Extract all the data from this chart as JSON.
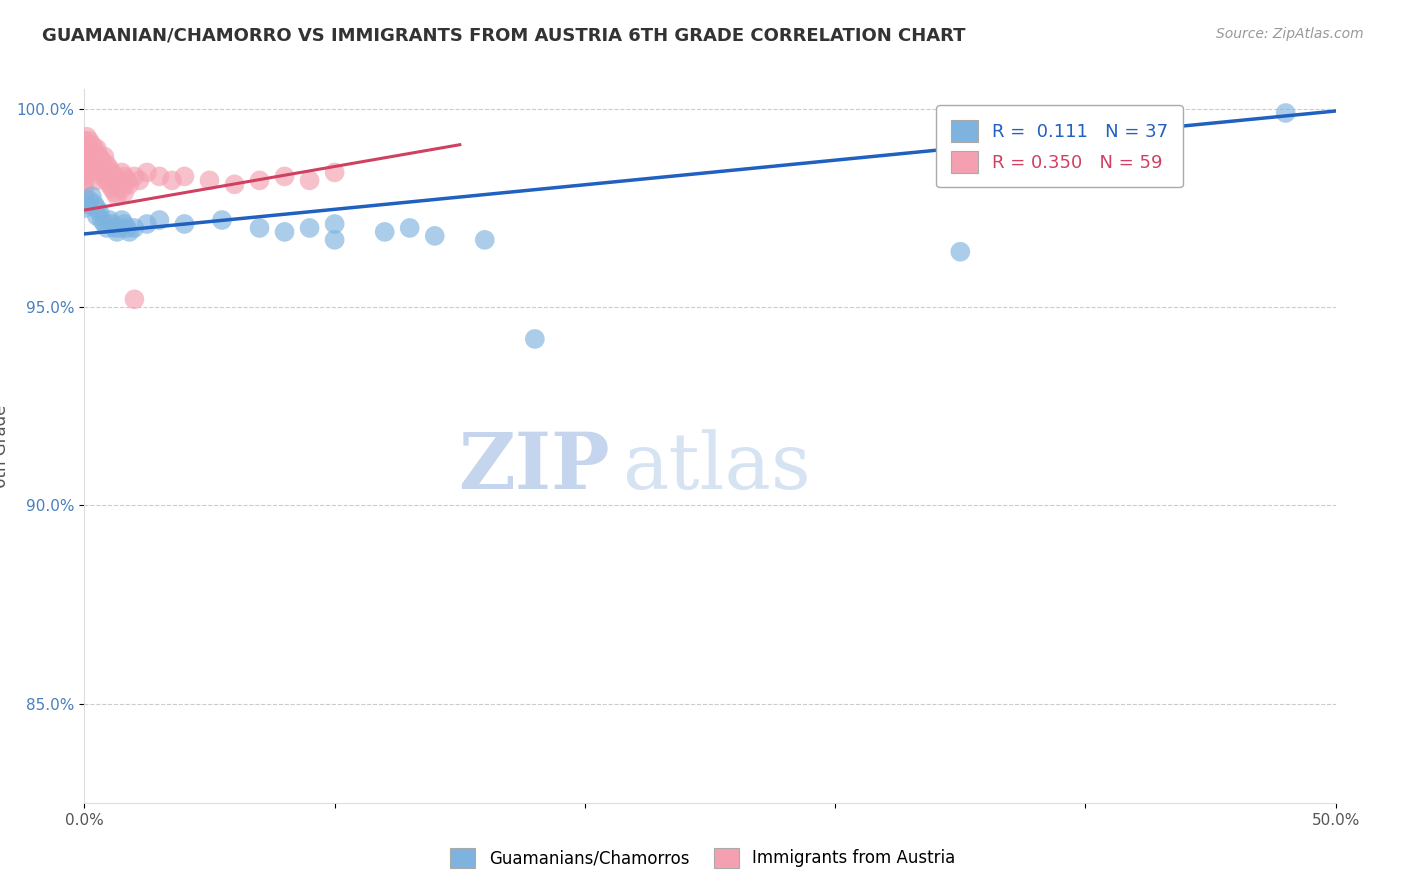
{
  "title": "GUAMANIAN/CHAMORRO VS IMMIGRANTS FROM AUSTRIA 6TH GRADE CORRELATION CHART",
  "source": "Source: ZipAtlas.com",
  "ylabel": "6th Grade",
  "xlim": [
    0.0,
    0.5
  ],
  "ylim": [
    0.825,
    1.005
  ],
  "xticks": [
    0.0,
    0.1,
    0.2,
    0.3,
    0.4,
    0.5
  ],
  "xticklabels": [
    "0.0%",
    "",
    "",
    "",
    "",
    "50.0%"
  ],
  "yticks": [
    0.85,
    0.9,
    0.95,
    1.0
  ],
  "yticklabels": [
    "85.0%",
    "90.0%",
    "95.0%",
    "100.0%"
  ],
  "R_blue": 0.111,
  "N_blue": 37,
  "R_pink": 0.35,
  "N_pink": 59,
  "blue_color": "#7eb3e0",
  "pink_color": "#f4a0b0",
  "blue_line_color": "#2060c0",
  "pink_line_color": "#d04060",
  "watermark": "ZIPatlas",
  "watermark_color": "#c8daf0",
  "legend_label_blue": "Guamanians/Chamorros",
  "legend_label_pink": "Immigrants from Austria",
  "blue_x": [
    0.0,
    0.001,
    0.002,
    0.003,
    0.004,
    0.005,
    0.005,
    0.006,
    0.007,
    0.008,
    0.009,
    0.01,
    0.011,
    0.012,
    0.013,
    0.014,
    0.015,
    0.016,
    0.017,
    0.018,
    0.02,
    0.025,
    0.03,
    0.04,
    0.055,
    0.07,
    0.08,
    0.09,
    0.1,
    0.12,
    0.13,
    0.1,
    0.14,
    0.16,
    0.18,
    0.48,
    0.35
  ],
  "blue_y": [
    0.975,
    0.976,
    0.977,
    0.978,
    0.976,
    0.975,
    0.973,
    0.974,
    0.972,
    0.971,
    0.97,
    0.972,
    0.971,
    0.97,
    0.969,
    0.97,
    0.972,
    0.971,
    0.97,
    0.969,
    0.97,
    0.971,
    0.972,
    0.971,
    0.972,
    0.97,
    0.969,
    0.97,
    0.971,
    0.969,
    0.97,
    0.967,
    0.968,
    0.967,
    0.942,
    0.999,
    0.964
  ],
  "pink_x": [
    0.0,
    0.0,
    0.0,
    0.0,
    0.0,
    0.0,
    0.0,
    0.0,
    0.0,
    0.0,
    0.001,
    0.001,
    0.001,
    0.002,
    0.002,
    0.002,
    0.003,
    0.003,
    0.004,
    0.004,
    0.005,
    0.005,
    0.005,
    0.006,
    0.006,
    0.007,
    0.007,
    0.008,
    0.008,
    0.009,
    0.009,
    0.01,
    0.01,
    0.011,
    0.011,
    0.012,
    0.012,
    0.013,
    0.013,
    0.014,
    0.015,
    0.015,
    0.016,
    0.016,
    0.017,
    0.018,
    0.02,
    0.022,
    0.025,
    0.03,
    0.035,
    0.04,
    0.05,
    0.06,
    0.07,
    0.08,
    0.09,
    0.02,
    0.1
  ],
  "pink_y": [
    0.992,
    0.99,
    0.988,
    0.986,
    0.984,
    0.983,
    0.981,
    0.98,
    0.978,
    0.976,
    0.993,
    0.991,
    0.989,
    0.992,
    0.988,
    0.985,
    0.991,
    0.987,
    0.99,
    0.986,
    0.99,
    0.985,
    0.982,
    0.988,
    0.984,
    0.987,
    0.983,
    0.988,
    0.984,
    0.986,
    0.982,
    0.985,
    0.981,
    0.984,
    0.98,
    0.983,
    0.979,
    0.982,
    0.978,
    0.981,
    0.984,
    0.98,
    0.983,
    0.979,
    0.982,
    0.981,
    0.983,
    0.982,
    0.984,
    0.983,
    0.982,
    0.983,
    0.982,
    0.981,
    0.982,
    0.983,
    0.982,
    0.952,
    0.984
  ],
  "blue_trendline_x": [
    0.0,
    0.5
  ],
  "blue_trendline_y": [
    0.9685,
    0.9995
  ],
  "pink_trendline_x": [
    0.0,
    0.1
  ],
  "pink_trendline_y": [
    0.975,
    0.991
  ]
}
